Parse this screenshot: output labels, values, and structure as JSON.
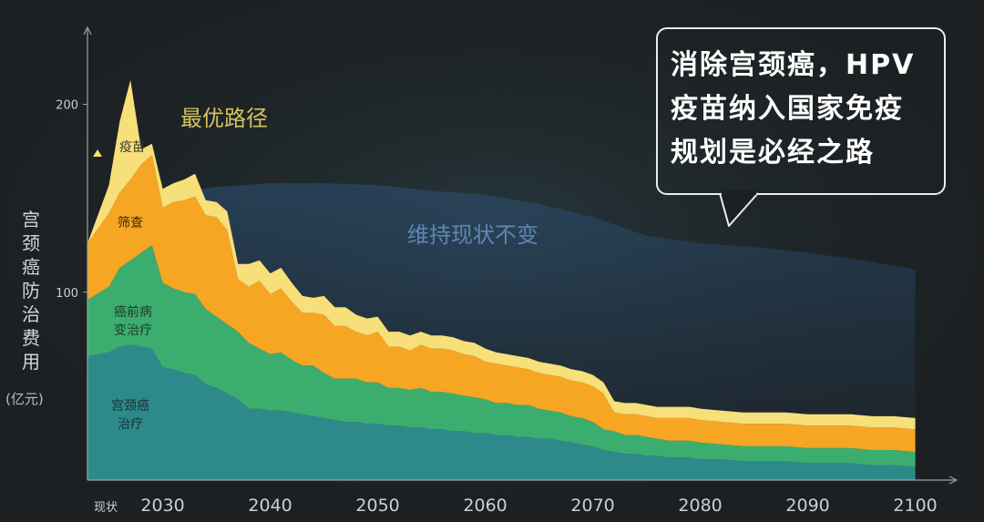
{
  "chart_data": {
    "type": "area",
    "x_tick_labels": [
      "现状",
      "2030",
      "2040",
      "2050",
      "2060",
      "2070",
      "2080",
      "2090",
      "2100"
    ],
    "x": [
      2023,
      2025,
      2026,
      2027,
      2028,
      2029,
      2030,
      2031,
      2032,
      2033,
      2034,
      2035,
      2036,
      2037,
      2038,
      2039,
      2040,
      2041,
      2042,
      2043,
      2044,
      2045,
      2046,
      2047,
      2048,
      2049,
      2050,
      2051,
      2052,
      2053,
      2054,
      2055,
      2056,
      2057,
      2058,
      2059,
      2060,
      2061,
      2062,
      2063,
      2064,
      2065,
      2066,
      2067,
      2068,
      2069,
      2070,
      2071,
      2072,
      2073,
      2074,
      2075,
      2076,
      2077,
      2078,
      2079,
      2080,
      2082,
      2084,
      2086,
      2088,
      2090,
      2092,
      2094,
      2096,
      2098,
      2100
    ],
    "yticks": [
      100,
      200
    ],
    "ylim": [
      0,
      240
    ],
    "xlim": [
      2023,
      2103
    ],
    "ylabel": "宫颈癌防治费用",
    "ylabel_unit": "(亿元)",
    "series": [
      {
        "name": "宫颈癌治疗",
        "color": "#2e8a8a",
        "values": [
          66,
          68,
          71,
          72,
          71,
          70,
          60,
          59,
          57,
          56,
          51,
          49,
          46,
          43,
          38,
          38,
          37,
          37,
          36,
          35,
          34,
          33,
          32,
          31,
          31,
          30,
          30,
          29,
          29,
          28,
          28,
          27,
          27,
          26,
          26,
          25,
          25,
          24,
          24,
          23,
          23,
          22,
          22,
          21,
          20,
          19,
          18,
          16,
          15,
          14,
          14,
          13,
          13,
          12,
          12,
          12,
          11,
          11,
          10,
          10,
          10,
          9,
          9,
          9,
          8,
          8,
          7
        ]
      },
      {
        "name": "癌前病变治疗",
        "color": "#3bae6f",
        "values": [
          30,
          35,
          42,
          45,
          50,
          55,
          45,
          43,
          43,
          43,
          40,
          38,
          37,
          36,
          35,
          32,
          30,
          31,
          28,
          26,
          27,
          24,
          22,
          23,
          23,
          22,
          22,
          20,
          20,
          20,
          21,
          20,
          20,
          20,
          19,
          19,
          18,
          17,
          17,
          17,
          17,
          16,
          15,
          15,
          14,
          14,
          13,
          11,
          11,
          10,
          10,
          10,
          9,
          9,
          9,
          9,
          9,
          8,
          8,
          8,
          8,
          8,
          8,
          8,
          8,
          8,
          8
        ]
      },
      {
        "name": "筛查",
        "color": "#f6a623",
        "values": [
          30,
          39,
          40,
          43,
          47,
          48,
          40,
          46,
          49,
          52,
          50,
          53,
          50,
          28,
          30,
          36,
          32,
          34,
          31,
          28,
          28,
          31,
          28,
          28,
          25,
          25,
          27,
          22,
          22,
          21,
          23,
          23,
          23,
          23,
          22,
          22,
          20,
          21,
          20,
          20,
          19,
          19,
          19,
          19,
          19,
          19,
          19,
          19,
          10,
          11,
          11,
          11,
          11,
          12,
          12,
          12,
          12,
          12,
          12,
          12,
          12,
          12,
          12,
          12,
          12,
          12,
          12
        ]
      },
      {
        "name": "疫苗",
        "color": "#f7df79",
        "values": [
          0,
          15,
          38,
          53,
          8,
          6,
          10,
          10,
          11,
          12,
          8,
          8,
          10,
          8,
          12,
          11,
          11,
          11,
          10,
          9,
          8,
          10,
          10,
          10,
          9,
          9,
          8,
          8,
          8,
          8,
          7,
          7,
          7,
          7,
          7,
          7,
          7,
          6,
          6,
          6,
          6,
          6,
          6,
          6,
          6,
          6,
          6,
          6,
          6,
          6,
          6,
          6,
          6,
          6,
          6,
          6,
          6,
          6,
          6,
          6,
          6,
          6,
          6,
          6,
          6,
          6,
          6
        ]
      }
    ],
    "baseline_series": {
      "name": "维持现状不变",
      "x": [
        2026,
        2030,
        2035,
        2040,
        2045,
        2050,
        2055,
        2060,
        2065,
        2070,
        2075,
        2080,
        2085,
        2090,
        2095,
        2100
      ],
      "values": [
        148,
        152,
        156,
        158,
        158,
        157,
        154,
        152,
        147,
        140,
        130,
        126,
        124,
        121,
        117,
        112
      ]
    },
    "annotations": {
      "optimal": "最优路径",
      "status_quo": "维持现状不变",
      "layer_vaccine": "疫苗",
      "layer_screening": "筛查",
      "layer_precancer": "癌前病\n变治疗",
      "layer_treatment": "宫颈癌\n治疗"
    }
  },
  "callout": {
    "text": "消除宫颈癌，HPV\n疫苗纳入国家免疫\n规划是必经之路"
  },
  "colors": {
    "background": "#1c2022",
    "axis": "#9aa2a6",
    "tick_label": "#c9d0d2",
    "optimal_label": "#d6c35f",
    "status_quo_label": "#5f86b5",
    "baseline_fill": "#26415c"
  },
  "icons": [
    "triangle-marker-icon"
  ]
}
